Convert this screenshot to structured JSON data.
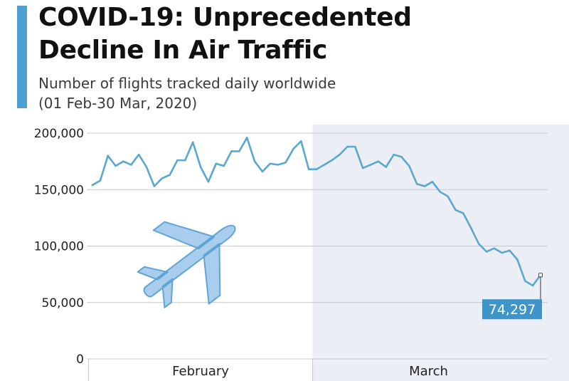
{
  "header": {
    "title_line1": "COVID-19: Unprecedented",
    "title_line2": "Decline In Air Traffic",
    "subtitle_line1": "Number of flights tracked daily worldwide",
    "subtitle_line2": "(01 Feb-30 Mar, 2020)"
  },
  "colors": {
    "accent": "#4a9fd0",
    "line": "#5aa8cf",
    "march_shade": "#eceef5",
    "grid": "#c8c8c8",
    "callout_bg": "#3d95c9",
    "plane_fill": "#a9cdec",
    "plane_stroke": "#5fa4d6"
  },
  "icons": {
    "plane": "airplane-icon"
  },
  "chart_data": {
    "type": "line",
    "title": "COVID-19: Unprecedented Decline In Air Traffic",
    "subtitle": "Number of flights tracked daily worldwide (01 Feb-30 Mar, 2020)",
    "xlabel": "",
    "ylabel": "",
    "ylim": [
      0,
      200000
    ],
    "yticks": [
      0,
      50000,
      100000,
      150000,
      200000
    ],
    "ytick_labels": [
      "0",
      "50,000",
      "100,000",
      "150,000",
      "200,000"
    ],
    "x_start": "2020-02-01",
    "x_end": "2020-03-30",
    "x_periods": [
      {
        "label": "February",
        "start": "2020-02-01",
        "end": "2020-02-29",
        "shaded": false
      },
      {
        "label": "March",
        "start": "2020-03-01",
        "end": "2020-03-30",
        "shaded": true
      }
    ],
    "grid": true,
    "series": [
      {
        "name": "",
        "x": [
          "2020-02-01",
          "2020-02-02",
          "2020-02-03",
          "2020-02-04",
          "2020-02-05",
          "2020-02-06",
          "2020-02-07",
          "2020-02-08",
          "2020-02-09",
          "2020-02-10",
          "2020-02-11",
          "2020-02-12",
          "2020-02-13",
          "2020-02-14",
          "2020-02-15",
          "2020-02-16",
          "2020-02-17",
          "2020-02-18",
          "2020-02-19",
          "2020-02-20",
          "2020-02-21",
          "2020-02-22",
          "2020-02-23",
          "2020-02-24",
          "2020-02-25",
          "2020-02-26",
          "2020-02-27",
          "2020-02-28",
          "2020-02-29",
          "2020-03-01",
          "2020-03-02",
          "2020-03-03",
          "2020-03-04",
          "2020-03-05",
          "2020-03-06",
          "2020-03-07",
          "2020-03-08",
          "2020-03-09",
          "2020-03-10",
          "2020-03-11",
          "2020-03-12",
          "2020-03-13",
          "2020-03-14",
          "2020-03-15",
          "2020-03-16",
          "2020-03-17",
          "2020-03-18",
          "2020-03-19",
          "2020-03-20",
          "2020-03-21",
          "2020-03-22",
          "2020-03-23",
          "2020-03-24",
          "2020-03-25",
          "2020-03-26",
          "2020-03-27",
          "2020-03-28",
          "2020-03-29",
          "2020-03-30"
        ],
        "values": [
          154000,
          158000,
          180000,
          171000,
          175000,
          172000,
          181000,
          170000,
          153000,
          160000,
          163000,
          176000,
          176000,
          192000,
          170000,
          157000,
          173000,
          171000,
          184000,
          184000,
          196000,
          175000,
          166000,
          173000,
          172000,
          174000,
          186000,
          193000,
          168000,
          168000,
          172000,
          176000,
          181000,
          188000,
          188000,
          169000,
          172000,
          175000,
          170000,
          181000,
          179000,
          171000,
          155000,
          153000,
          157000,
          148000,
          144000,
          132000,
          129000,
          116000,
          102000,
          95000,
          98000,
          94000,
          96000,
          88000,
          69000,
          65000,
          74297
        ]
      }
    ],
    "callout": {
      "date": "2020-03-30",
      "label": "74,297"
    }
  }
}
